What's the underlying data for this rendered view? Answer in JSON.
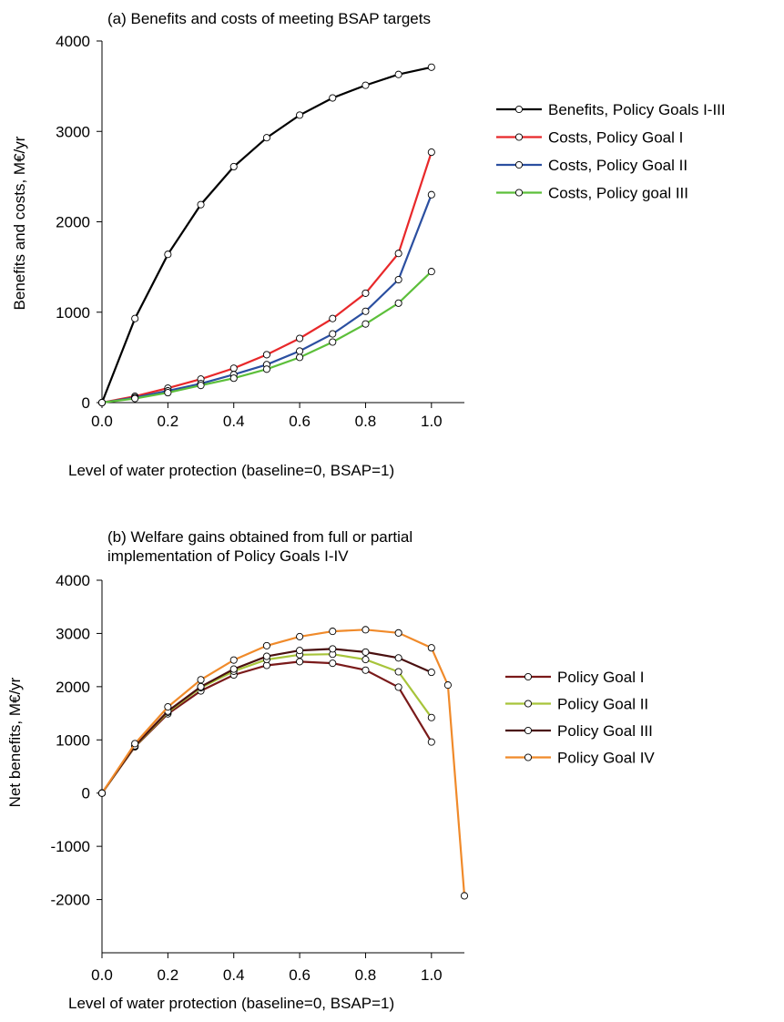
{
  "chart_data": [
    {
      "type": "line",
      "title": "(a) Benefits and costs of meeting BSAP targets",
      "xlabel": "Level of water protection (baseline=0, BSAP=1)",
      "ylabel": "Benefits and costs, M€/yr",
      "xlim": [
        0,
        1.1
      ],
      "ylim": [
        0,
        4000
      ],
      "xticks": [
        0,
        0.2,
        0.4,
        0.6,
        0.8,
        1.0
      ],
      "xtick_labels": [
        "0.0",
        "0.2",
        "0.4",
        "0.6",
        "0.8",
        "1.0"
      ],
      "yticks": [
        0,
        1000,
        2000,
        3000,
        4000
      ],
      "ytick_labels": [
        "0",
        "1000",
        "2000",
        "3000",
        "4000"
      ],
      "grid": false,
      "legend_position": "right",
      "series": [
        {
          "name": "Benefits, Policy Goals I-III",
          "color": "#000000",
          "x": [
            0,
            0.1,
            0.2,
            0.3,
            0.4,
            0.5,
            0.6,
            0.7,
            0.8,
            0.9,
            1.0
          ],
          "y": [
            0,
            930,
            1640,
            2190,
            2610,
            2930,
            3180,
            3370,
            3510,
            3630,
            3710
          ]
        },
        {
          "name": "Costs, Policy Goal I",
          "color": "#e8282a",
          "x": [
            0,
            0.1,
            0.2,
            0.3,
            0.4,
            0.5,
            0.6,
            0.7,
            0.8,
            0.9,
            1.0
          ],
          "y": [
            0,
            70,
            160,
            260,
            380,
            530,
            710,
            930,
            1210,
            1650,
            2770
          ]
        },
        {
          "name": "Costs, Policy Goal II",
          "color": "#2b4fa0",
          "x": [
            0,
            0.1,
            0.2,
            0.3,
            0.4,
            0.5,
            0.6,
            0.7,
            0.8,
            0.9,
            1.0
          ],
          "y": [
            0,
            55,
            130,
            210,
            310,
            420,
            570,
            760,
            1010,
            1360,
            2300
          ]
        },
        {
          "name": "Costs, Policy goal III",
          "color": "#5cbf3a",
          "x": [
            0,
            0.1,
            0.2,
            0.3,
            0.4,
            0.5,
            0.6,
            0.7,
            0.8,
            0.9,
            1.0
          ],
          "y": [
            0,
            45,
            110,
            190,
            270,
            370,
            500,
            670,
            870,
            1100,
            1450
          ]
        }
      ]
    },
    {
      "type": "line",
      "title": "(b) Welfare gains obtained from full or partial implementation of Policy Goals I-IV",
      "title_lines": [
        "(b) Welfare gains obtained from full or partial",
        "implementation of Policy Goals I-IV"
      ],
      "xlabel": "Level of water protection (baseline=0, BSAP=1)",
      "ylabel": "Net benefits, M€/yr",
      "xlim": [
        0,
        1.1
      ],
      "ylim": [
        -3000,
        4000
      ],
      "xticks": [
        0,
        0.2,
        0.4,
        0.6,
        0.8,
        1.0
      ],
      "xtick_labels": [
        "0.0",
        "0.2",
        "0.4",
        "0.6",
        "0.8",
        "1.0"
      ],
      "yticks": [
        -2000,
        -1000,
        0,
        1000,
        2000,
        3000,
        4000
      ],
      "ytick_labels": [
        "-2000",
        "-1000",
        "0",
        "1000",
        "2000",
        "3000",
        "4000"
      ],
      "grid": false,
      "legend_position": "right",
      "series": [
        {
          "name": "Policy Goal I",
          "color": "#7a1a1a",
          "x": [
            0,
            0.1,
            0.2,
            0.3,
            0.4,
            0.5,
            0.6,
            0.7,
            0.8,
            0.9,
            1.0
          ],
          "y": [
            0,
            870,
            1490,
            1920,
            2220,
            2400,
            2470,
            2440,
            2310,
            1990,
            960
          ]
        },
        {
          "name": "Policy Goal II",
          "color": "#a7c43a",
          "x": [
            0,
            0.1,
            0.2,
            0.3,
            0.4,
            0.5,
            0.6,
            0.7,
            0.8,
            0.9,
            1.0
          ],
          "y": [
            0,
            880,
            1520,
            1980,
            2290,
            2510,
            2600,
            2610,
            2510,
            2280,
            1420
          ]
        },
        {
          "name": "Policy Goal III",
          "color": "#4a1010",
          "x": [
            0,
            0.1,
            0.2,
            0.3,
            0.4,
            0.5,
            0.6,
            0.7,
            0.8,
            0.9,
            1.0
          ],
          "y": [
            0,
            890,
            1540,
            2000,
            2330,
            2570,
            2680,
            2710,
            2650,
            2540,
            2270
          ]
        },
        {
          "name": "Policy Goal IV",
          "color": "#f08a2a",
          "x": [
            0,
            0.1,
            0.2,
            0.3,
            0.4,
            0.5,
            0.6,
            0.7,
            0.8,
            0.9,
            1.0,
            1.05,
            1.1
          ],
          "y": [
            0,
            930,
            1620,
            2130,
            2500,
            2770,
            2940,
            3040,
            3070,
            3010,
            2730,
            2030,
            -1930
          ]
        }
      ]
    }
  ]
}
